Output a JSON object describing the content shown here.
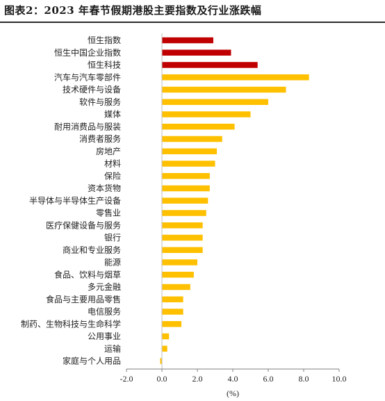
{
  "title": "图表2：2023 年春节假期港股主要指数及行业涨跌幅",
  "chart_data": {
    "type": "bar",
    "orientation": "horizontal",
    "categories": [
      "恒生指数",
      "恒生中国企业指数",
      "恒生科技",
      "汽车与汽车零部件",
      "技术硬件与设备",
      "软件与服务",
      "媒体",
      "耐用消费品与服装",
      "消费者服务",
      "房地产",
      "材料",
      "保险",
      "资本货物",
      "半导体与半导体生产设备",
      "零售业",
      "医疗保健设备与服务",
      "银行",
      "商业和专业服务",
      "能源",
      "食品、饮料与烟草",
      "多元金融",
      "食品与主要用品零售",
      "电信服务",
      "制药、生物科技与生命科学",
      "公用事业",
      "运输",
      "家庭与个人用品"
    ],
    "values": [
      2.9,
      3.9,
      5.4,
      8.3,
      7.0,
      6.0,
      5.0,
      4.1,
      3.4,
      3.1,
      3.0,
      2.7,
      2.7,
      2.6,
      2.5,
      2.3,
      2.3,
      2.3,
      2.0,
      1.8,
      1.6,
      1.2,
      1.2,
      1.1,
      0.4,
      0.3,
      -0.1
    ],
    "highlight_count": 3,
    "colors": {
      "index": "#c00000",
      "industry": "#ffc000"
    },
    "xlim": [
      -2.0,
      10.0
    ],
    "xticks": [
      "-2.0",
      "0.0",
      "2.0",
      "4.0",
      "6.0",
      "8.0",
      "10.0"
    ],
    "xlabel": "(%)",
    "grid": false
  }
}
